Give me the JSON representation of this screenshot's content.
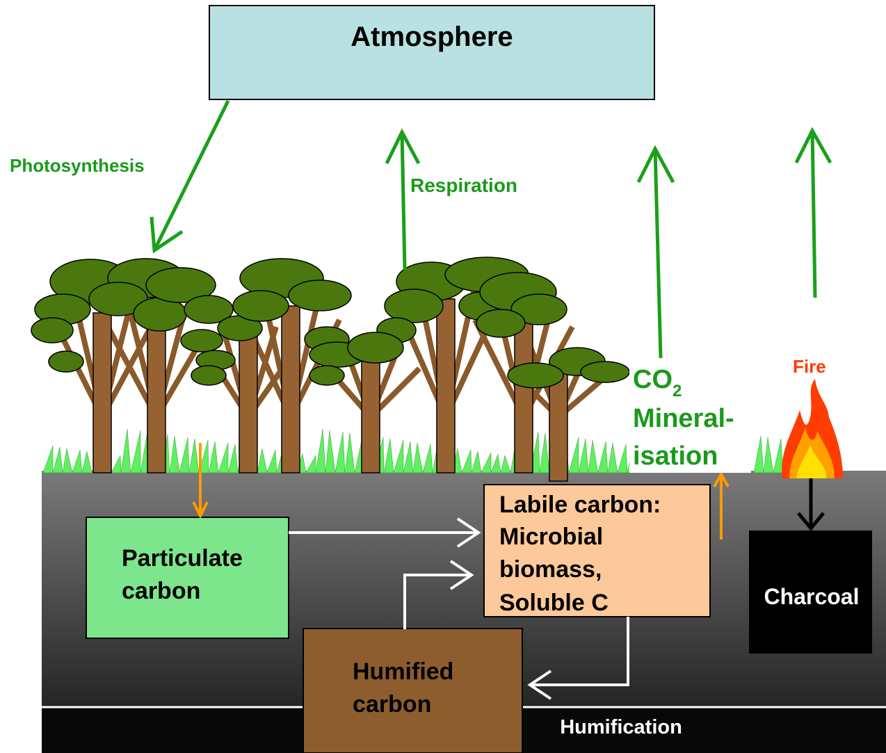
{
  "nodes": [
    {
      "id": "atmosphere",
      "lines": [
        "Atmosphere"
      ]
    },
    {
      "id": "particulate",
      "lines": [
        "Particulate",
        "carbon"
      ]
    },
    {
      "id": "labile",
      "lines": [
        "Labile carbon:",
        "Microbial",
        "biomass,",
        "Soluble C"
      ]
    },
    {
      "id": "charcoal",
      "lines": [
        "Charcoal"
      ]
    },
    {
      "id": "humified",
      "lines": [
        "Humified",
        "carbon"
      ]
    }
  ],
  "labels": {
    "photosynthesis": "Photosynthesis",
    "respiration": "Respiration",
    "co2": {
      "text": "CO",
      "sub": "2"
    },
    "mineralisation": [
      "Mineral-",
      "isation"
    ],
    "fire": "Fire",
    "humification": "Humification"
  }
}
